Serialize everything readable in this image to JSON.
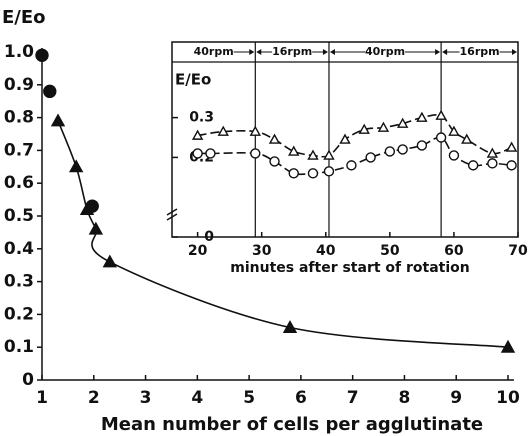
{
  "chart_data": [
    {
      "type": "scatter",
      "y_label": "E/Eo",
      "x_label": "Mean number of cells per agglutinate",
      "xlim": [
        1,
        10
      ],
      "xticks": [
        1,
        2,
        3,
        4,
        5,
        6,
        7,
        8,
        9,
        10
      ],
      "ylim": [
        0,
        1
      ],
      "yticks": [
        0,
        0.1,
        0.2,
        0.3,
        0.4,
        0.5,
        0.6,
        0.7,
        0.8,
        0.9,
        {
          "value": 1,
          "label": "1.0"
        }
      ],
      "series": [
        {
          "marker": "circle",
          "filled": true,
          "line": "none",
          "color": "#111111",
          "x": [
            1,
            1.15,
            1.97
          ],
          "values": [
            0.99,
            0.88,
            0.53
          ]
        },
        {
          "marker": "triangle",
          "filled": true,
          "line": "solid",
          "color": "#111111",
          "x": [
            1.31,
            1.66,
            1.87,
            2.04,
            2.31,
            5.79,
            10
          ],
          "values": [
            0.79,
            0.65,
            0.52,
            0.46,
            0.36,
            0.16,
            0.1
          ]
        }
      ]
    },
    {
      "type": "line",
      "y_label": "E/Eo",
      "x_label": "minutes after start of rotation",
      "xlim": [
        16,
        70
      ],
      "xticks": [
        20,
        30,
        40,
        50,
        60,
        70
      ],
      "ylim": [
        0,
        0.49
      ],
      "yticks": [
        0,
        0.2,
        0.3
      ],
      "phases": [
        {
          "label": "40rpm",
          "end": 29
        },
        {
          "label": "16rpm",
          "end": 40.5
        },
        {
          "label": "40rpm",
          "end": 58
        },
        {
          "label": "16rpm",
          "end": 70
        }
      ],
      "series": [
        {
          "marker": "triangle",
          "filled": false,
          "line": "dashed",
          "color": "#111111",
          "x": [
            20,
            24,
            29,
            32,
            35,
            38,
            40.5,
            43,
            46,
            49,
            52,
            55,
            58,
            60,
            62,
            66,
            69
          ],
          "values": [
            0.255,
            0.265,
            0.265,
            0.245,
            0.215,
            0.205,
            0.205,
            0.245,
            0.27,
            0.275,
            0.285,
            0.3,
            0.305,
            0.265,
            0.245,
            0.21,
            0.225
          ]
        },
        {
          "marker": "circle",
          "filled": false,
          "line": "dashed",
          "color": "#111111",
          "x": [
            20,
            22,
            29,
            32,
            35,
            38,
            40.5,
            44,
            47,
            50,
            52,
            55,
            58,
            60,
            63,
            66,
            69
          ],
          "values": [
            0.21,
            0.21,
            0.21,
            0.19,
            0.16,
            0.16,
            0.165,
            0.18,
            0.2,
            0.215,
            0.22,
            0.23,
            0.25,
            0.205,
            0.18,
            0.185,
            0.18
          ]
        }
      ]
    }
  ]
}
